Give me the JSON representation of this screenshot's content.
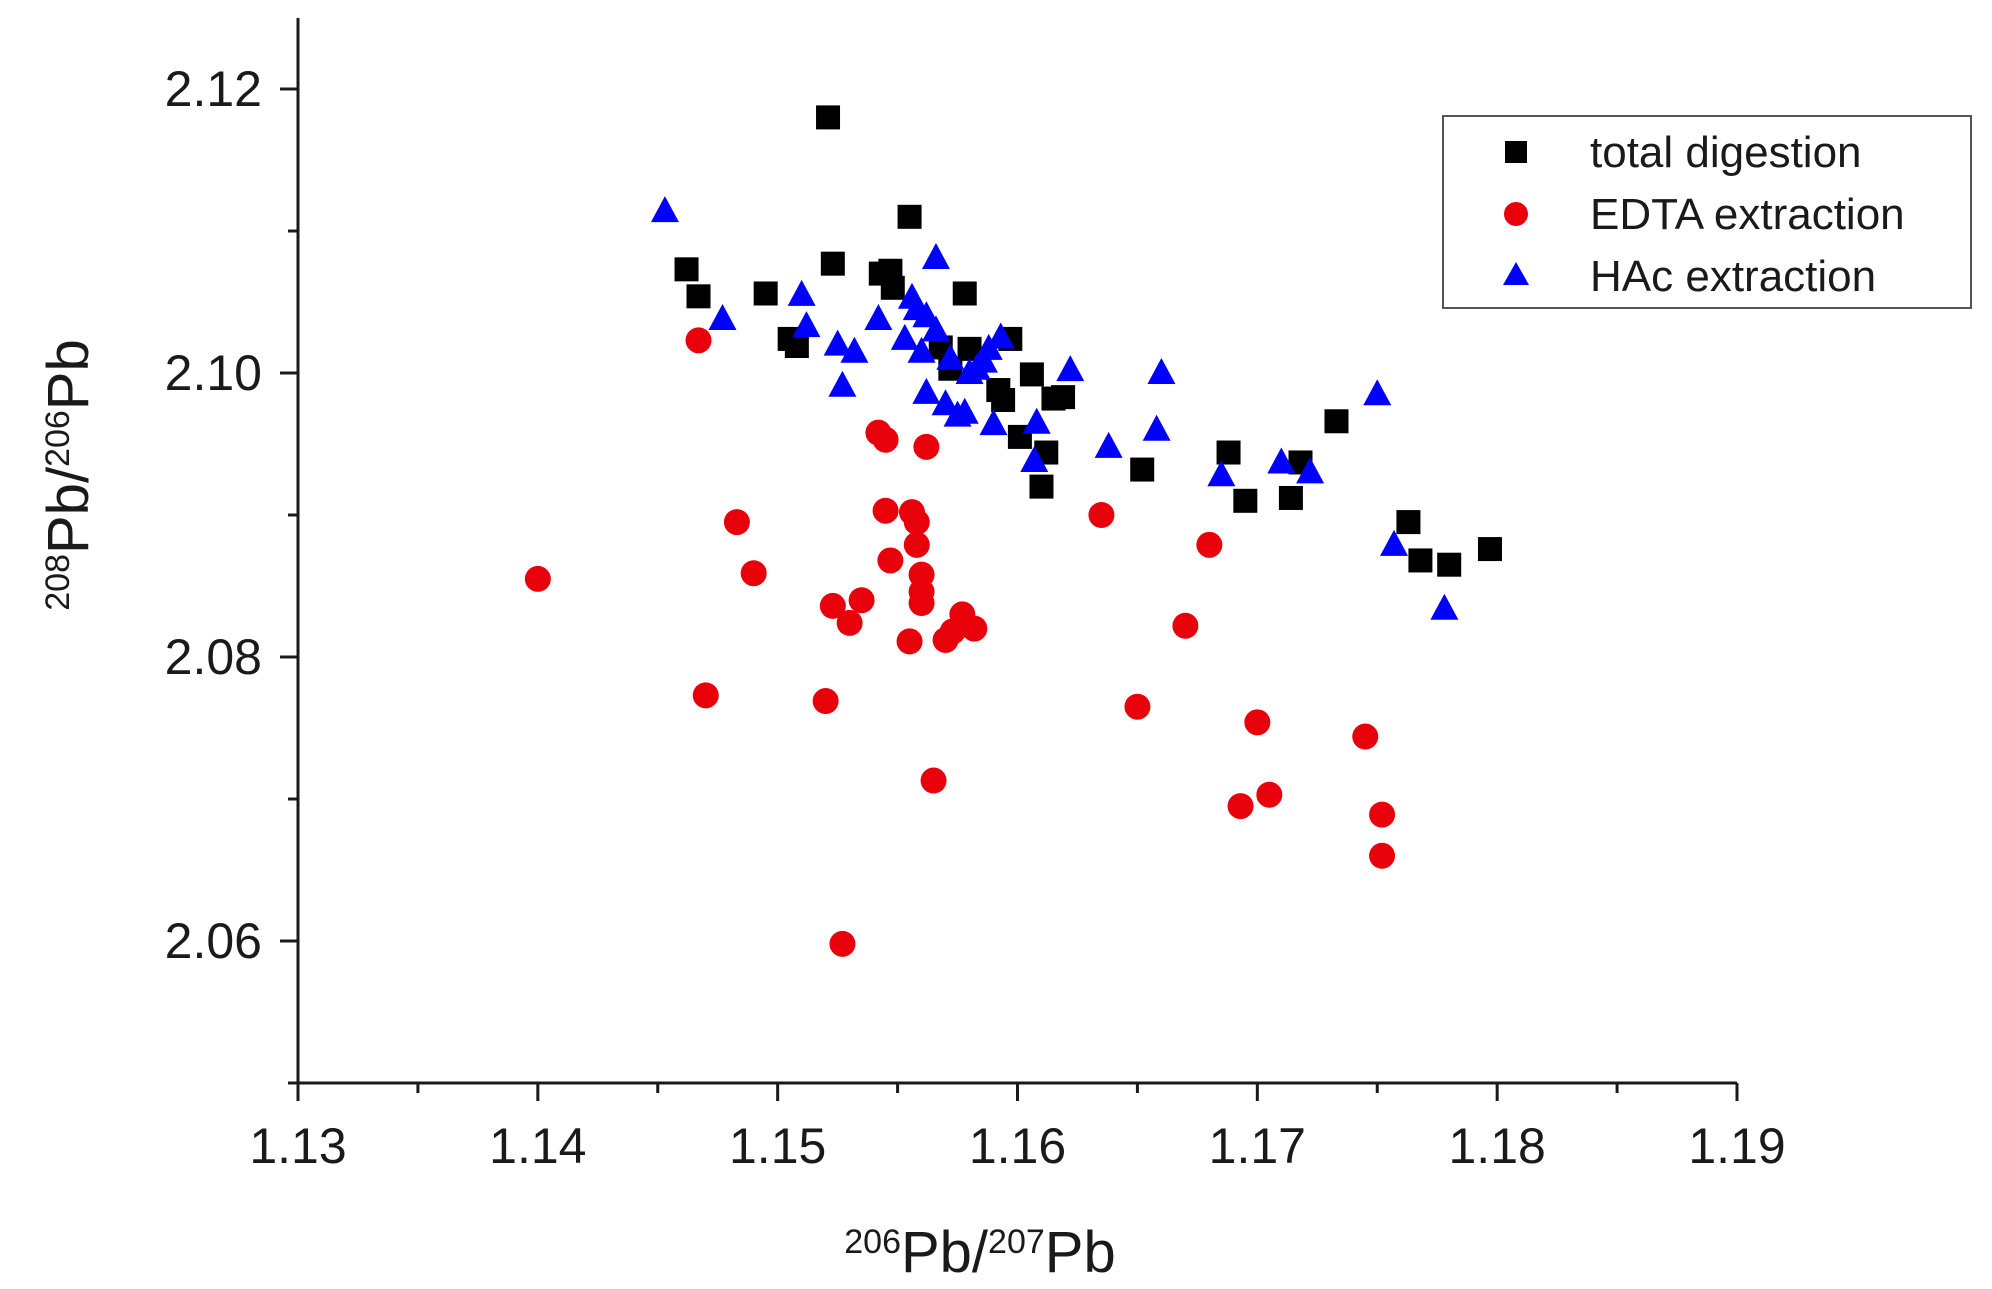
{
  "colors": {
    "total_digestion": "#000000",
    "edta_extraction": "#e8000b",
    "hac_extraction": "#0000ff",
    "axis": "#1a1a1a"
  },
  "x_title": {
    "sup1": "206",
    "base1": "Pb/",
    "sup2": "207",
    "base2": "Pb"
  },
  "y_title": {
    "sup1": "208",
    "base1": "Pb/",
    "sup2": "206",
    "base2": "Pb"
  },
  "chart_data": {
    "type": "scatter",
    "title": "",
    "xlabel": "206Pb/207Pb",
    "ylabel": "208Pb/206Pb",
    "xlim": [
      1.13,
      1.19
    ],
    "ylim": [
      2.05,
      2.125
    ],
    "x_ticks": [
      "1.13",
      "1.14",
      "1.15",
      "1.16",
      "1.17",
      "1.18",
      "1.19"
    ],
    "y_ticks": [
      "2.06",
      "2.08",
      "2.10",
      "2.12"
    ],
    "grid": false,
    "legend_position": "top-right",
    "series": [
      {
        "name": "total digestion",
        "marker": "square",
        "points": [
          [
            1.1521,
            2.118
          ],
          [
            1.1462,
            2.1073
          ],
          [
            1.1467,
            2.1054
          ],
          [
            1.1495,
            2.1056
          ],
          [
            1.1505,
            2.1024
          ],
          [
            1.1508,
            2.1019
          ],
          [
            1.1523,
            2.1077
          ],
          [
            1.1543,
            2.107
          ],
          [
            1.1547,
            2.1072
          ],
          [
            1.1548,
            2.106
          ],
          [
            1.1555,
            2.111
          ],
          [
            1.1568,
            2.1018
          ],
          [
            1.1572,
            2.1003
          ],
          [
            1.1578,
            2.1056
          ],
          [
            1.158,
            2.1017
          ],
          [
            1.1592,
            2.0988
          ],
          [
            1.1594,
            2.0981
          ],
          [
            1.1597,
            2.1024
          ],
          [
            1.1601,
            2.0955
          ],
          [
            1.1606,
            2.0999
          ],
          [
            1.161,
            2.092
          ],
          [
            1.1612,
            2.0944
          ],
          [
            1.1615,
            2.0982
          ],
          [
            1.1619,
            2.0983
          ],
          [
            1.1652,
            2.0932
          ],
          [
            1.1688,
            2.0944
          ],
          [
            1.1695,
            2.091
          ],
          [
            1.1714,
            2.0912
          ],
          [
            1.1718,
            2.0937
          ],
          [
            1.1733,
            2.0966
          ],
          [
            1.1763,
            2.0895
          ],
          [
            1.1768,
            2.0868
          ],
          [
            1.178,
            2.0865
          ],
          [
            1.1797,
            2.0876
          ]
        ]
      },
      {
        "name": "EDTA extraction",
        "marker": "circle",
        "points": [
          [
            1.14,
            2.0855
          ],
          [
            1.1467,
            2.1023
          ],
          [
            1.147,
            2.0773
          ],
          [
            1.1483,
            2.0895
          ],
          [
            1.149,
            2.0859
          ],
          [
            1.152,
            2.0769
          ],
          [
            1.1523,
            2.0836
          ],
          [
            1.1527,
            2.0598
          ],
          [
            1.153,
            2.0824
          ],
          [
            1.1535,
            2.084
          ],
          [
            1.1542,
            2.0958
          ],
          [
            1.1545,
            2.0953
          ],
          [
            1.1545,
            2.0903
          ],
          [
            1.1547,
            2.0868
          ],
          [
            1.1555,
            2.0811
          ],
          [
            1.1556,
            2.0902
          ],
          [
            1.1558,
            2.0895
          ],
          [
            1.1558,
            2.0879
          ],
          [
            1.156,
            2.0858
          ],
          [
            1.156,
            2.0846
          ],
          [
            1.156,
            2.0838
          ],
          [
            1.1562,
            2.0948
          ],
          [
            1.1565,
            2.0713
          ],
          [
            1.157,
            2.0812
          ],
          [
            1.1573,
            2.0818
          ],
          [
            1.1577,
            2.083
          ],
          [
            1.1582,
            2.082
          ],
          [
            1.1635,
            2.09
          ],
          [
            1.165,
            2.0765
          ],
          [
            1.167,
            2.0822
          ],
          [
            1.168,
            2.0879
          ],
          [
            1.1693,
            2.0695
          ],
          [
            1.17,
            2.0754
          ],
          [
            1.1705,
            2.0703
          ],
          [
            1.1745,
            2.0744
          ],
          [
            1.1752,
            2.0689
          ],
          [
            1.1752,
            2.066
          ]
        ]
      },
      {
        "name": "HAc extraction",
        "marker": "triangle",
        "points": [
          [
            1.1453,
            2.1114
          ],
          [
            1.1477,
            2.1038
          ],
          [
            1.151,
            2.1055
          ],
          [
            1.1512,
            2.1033
          ],
          [
            1.1525,
            2.102
          ],
          [
            1.1527,
            2.0991
          ],
          [
            1.1532,
            2.1015
          ],
          [
            1.1542,
            2.1038
          ],
          [
            1.1553,
            2.1024
          ],
          [
            1.1556,
            2.1053
          ],
          [
            1.1558,
            2.1045
          ],
          [
            1.156,
            2.1015
          ],
          [
            1.1562,
            2.104
          ],
          [
            1.1562,
            2.0986
          ],
          [
            1.1566,
            2.1081
          ],
          [
            1.1566,
            2.103
          ],
          [
            1.157,
            2.0978
          ],
          [
            1.1572,
            2.101
          ],
          [
            1.1575,
            2.097
          ],
          [
            1.1578,
            2.0972
          ],
          [
            1.158,
            2.1
          ],
          [
            1.1583,
            2.1003
          ],
          [
            1.1586,
            2.1008
          ],
          [
            1.1588,
            2.1017
          ],
          [
            1.159,
            2.0964
          ],
          [
            1.1593,
            2.1025
          ],
          [
            1.1607,
            2.0938
          ],
          [
            1.1608,
            2.0965
          ],
          [
            1.1622,
            2.1002
          ],
          [
            1.1638,
            2.0948
          ],
          [
            1.1658,
            2.096
          ],
          [
            1.166,
            2.1
          ],
          [
            1.1685,
            2.0928
          ],
          [
            1.171,
            2.0937
          ],
          [
            1.1722,
            2.093
          ],
          [
            1.175,
            2.0985
          ],
          [
            1.1757,
            2.0879
          ],
          [
            1.1778,
            2.0834
          ]
        ]
      }
    ]
  }
}
